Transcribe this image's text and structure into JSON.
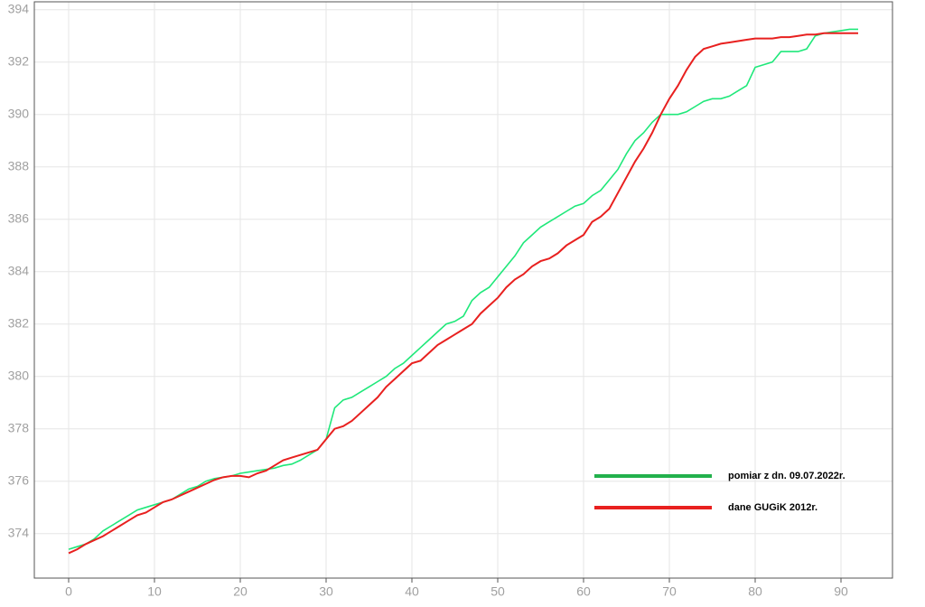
{
  "chart_data": {
    "type": "line",
    "x": [
      0,
      1,
      2,
      3,
      4,
      5,
      6,
      7,
      8,
      9,
      10,
      11,
      12,
      13,
      14,
      15,
      16,
      17,
      18,
      19,
      20,
      21,
      22,
      23,
      24,
      25,
      26,
      27,
      28,
      29,
      30,
      31,
      32,
      33,
      34,
      35,
      36,
      37,
      38,
      39,
      40,
      41,
      42,
      43,
      44,
      45,
      46,
      47,
      48,
      49,
      50,
      51,
      52,
      53,
      54,
      55,
      56,
      57,
      58,
      59,
      60,
      61,
      62,
      63,
      64,
      65,
      66,
      67,
      68,
      69,
      70,
      71,
      72,
      73,
      74,
      75,
      76,
      77,
      78,
      79,
      80,
      81,
      82,
      83,
      84,
      85,
      86,
      87,
      88,
      89,
      90,
      91,
      92
    ],
    "series": [
      {
        "name": "pomiar z dn. 09.07.2022r.",
        "color": "#1fe87a",
        "legend_color": "#22b14c",
        "values": [
          373.4,
          373.5,
          373.6,
          373.8,
          374.1,
          374.3,
          374.5,
          374.7,
          374.9,
          375.0,
          375.1,
          375.2,
          375.3,
          375.5,
          375.7,
          375.8,
          376.0,
          376.1,
          376.15,
          376.2,
          376.3,
          376.35,
          376.4,
          376.45,
          376.5,
          376.6,
          376.65,
          376.8,
          377.0,
          377.2,
          377.6,
          378.8,
          379.1,
          379.2,
          379.4,
          379.6,
          379.8,
          380.0,
          380.3,
          380.5,
          380.8,
          381.1,
          381.4,
          381.7,
          382.0,
          382.1,
          382.3,
          382.9,
          383.2,
          383.4,
          383.8,
          384.2,
          384.6,
          385.1,
          385.4,
          385.7,
          385.9,
          386.1,
          386.3,
          386.5,
          386.6,
          386.9,
          387.1,
          387.5,
          387.9,
          388.5,
          389.0,
          389.3,
          389.7,
          390.0,
          390.0,
          390.0,
          390.1,
          390.3,
          390.5,
          390.6,
          390.6,
          390.7,
          390.9,
          391.1,
          391.8,
          391.9,
          392.0,
          392.4,
          392.4,
          392.4,
          392.5,
          393.0,
          393.1,
          393.15,
          393.2,
          393.25,
          393.25
        ]
      },
      {
        "name": "dane GUGiK 2012r.",
        "color": "#e8201f",
        "legend_color": "#e8201f",
        "values": [
          373.25,
          373.4,
          373.6,
          373.75,
          373.9,
          374.1,
          374.3,
          374.5,
          374.7,
          374.8,
          375.0,
          375.2,
          375.3,
          375.45,
          375.6,
          375.75,
          375.9,
          376.05,
          376.15,
          376.2,
          376.2,
          376.15,
          376.3,
          376.4,
          376.6,
          376.8,
          376.9,
          377.0,
          377.1,
          377.2,
          377.6,
          378.0,
          378.1,
          378.3,
          378.6,
          378.9,
          379.2,
          379.6,
          379.9,
          380.2,
          380.5,
          380.6,
          380.9,
          381.2,
          381.4,
          381.6,
          381.8,
          382.0,
          382.4,
          382.7,
          383.0,
          383.4,
          383.7,
          383.9,
          384.2,
          384.4,
          384.5,
          384.7,
          385.0,
          385.2,
          385.4,
          385.9,
          386.1,
          386.4,
          387.0,
          387.6,
          388.2,
          388.7,
          389.3,
          390.0,
          390.6,
          391.1,
          391.7,
          392.2,
          392.5,
          392.6,
          392.7,
          392.75,
          392.8,
          392.85,
          392.9,
          392.9,
          392.9,
          392.95,
          392.95,
          393.0,
          393.05,
          393.05,
          393.1,
          393.1,
          393.1,
          393.1,
          393.1
        ]
      }
    ],
    "xlim": [
      -4,
      96
    ],
    "ylim": [
      372.3,
      394.3
    ],
    "xticks": [
      0,
      10,
      20,
      30,
      40,
      50,
      60,
      70,
      80,
      90
    ],
    "yticks": [
      374,
      376,
      378,
      380,
      382,
      384,
      386,
      388,
      390,
      392,
      394
    ],
    "grid": true,
    "legend": "lower right"
  }
}
